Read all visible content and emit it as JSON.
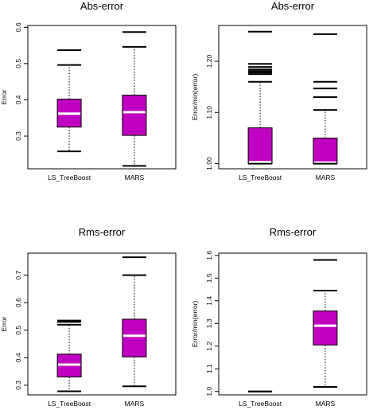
{
  "colors": {
    "box_fill": "#c000c0",
    "median": "#ffffff",
    "ink": "#000000",
    "background": "#ffffff"
  },
  "chart_data": [
    {
      "type": "boxplot",
      "title": "Abs-error",
      "ylabel": "Error",
      "categories": [
        "LS_TreeBoost",
        "MARS"
      ],
      "ylim": [
        0.21,
        0.605
      ],
      "yticks": [
        0.3,
        0.4,
        0.5,
        0.6
      ],
      "ytick_labels": [
        "0.3",
        "0.4",
        "0.5",
        "0.6"
      ],
      "boxes": [
        {
          "whisker_low": 0.258,
          "q1": 0.325,
          "median": 0.362,
          "q3": 0.402,
          "whisker_high": 0.496,
          "outliers": [
            0.537
          ]
        },
        {
          "whisker_low": 0.218,
          "q1": 0.302,
          "median": 0.366,
          "q3": 0.413,
          "whisker_high": 0.546,
          "outliers": [
            0.587
          ]
        }
      ],
      "grid": false,
      "legend": "none"
    },
    {
      "type": "boxplot",
      "title": "Abs-error",
      "ylabel": "Error/min(error)",
      "categories": [
        "LS_TreeBoost",
        "MARS"
      ],
      "ylim": [
        0.99,
        1.27
      ],
      "yticks": [
        1.0,
        1.1,
        1.2
      ],
      "ytick_labels": [
        "1.00",
        "1.10",
        "1.20"
      ],
      "boxes": [
        {
          "whisker_low": 1.0,
          "q1": 1.0,
          "median": 1.003,
          "q3": 1.07,
          "whisker_high": 1.16,
          "outliers": [
            1.175,
            1.178,
            1.181,
            1.184,
            1.189,
            1.195,
            1.258
          ]
        },
        {
          "whisker_low": 1.0,
          "q1": 1.0,
          "median": 1.002,
          "q3": 1.05,
          "whisker_high": 1.105,
          "outliers": [
            1.13,
            1.147,
            1.16,
            1.253
          ]
        }
      ],
      "grid": false,
      "legend": "none"
    },
    {
      "type": "boxplot",
      "title": "Rms-error",
      "ylabel": "Error",
      "categories": [
        "LS_TreeBoost",
        "MARS"
      ],
      "ylim": [
        0.265,
        0.78
      ],
      "yticks": [
        0.3,
        0.4,
        0.5,
        0.6,
        0.7
      ],
      "ytick_labels": [
        "0.3",
        "0.4",
        "0.5",
        "0.6",
        "0.7"
      ],
      "boxes": [
        {
          "whisker_low": 0.278,
          "q1": 0.33,
          "median": 0.375,
          "q3": 0.413,
          "whisker_high": 0.52,
          "outliers": [
            0.53,
            0.535
          ]
        },
        {
          "whisker_low": 0.296,
          "q1": 0.403,
          "median": 0.48,
          "q3": 0.54,
          "whisker_high": 0.7,
          "outliers": [
            0.765
          ]
        }
      ],
      "grid": false,
      "legend": "none"
    },
    {
      "type": "boxplot",
      "title": "Rms-error",
      "ylabel": "Error/min(error)",
      "categories": [
        "LS_TreeBoost",
        "MARS"
      ],
      "ylim": [
        0.985,
        1.61
      ],
      "yticks": [
        1.0,
        1.1,
        1.2,
        1.3,
        1.4,
        1.5,
        1.6
      ],
      "ytick_labels": [
        "1.0",
        "1.1",
        "1.2",
        "1.3",
        "1.4",
        "1.5",
        "1.6"
      ],
      "boxes": [
        {
          "whisker_low": 1.0,
          "q1": 1.0,
          "median": 1.0,
          "q3": 1.0,
          "whisker_high": 1.0,
          "outliers": []
        },
        {
          "whisker_low": 1.02,
          "q1": 1.205,
          "median": 1.29,
          "q3": 1.355,
          "whisker_high": 1.445,
          "outliers": [
            1.58
          ]
        }
      ],
      "grid": false,
      "legend": "none"
    }
  ]
}
